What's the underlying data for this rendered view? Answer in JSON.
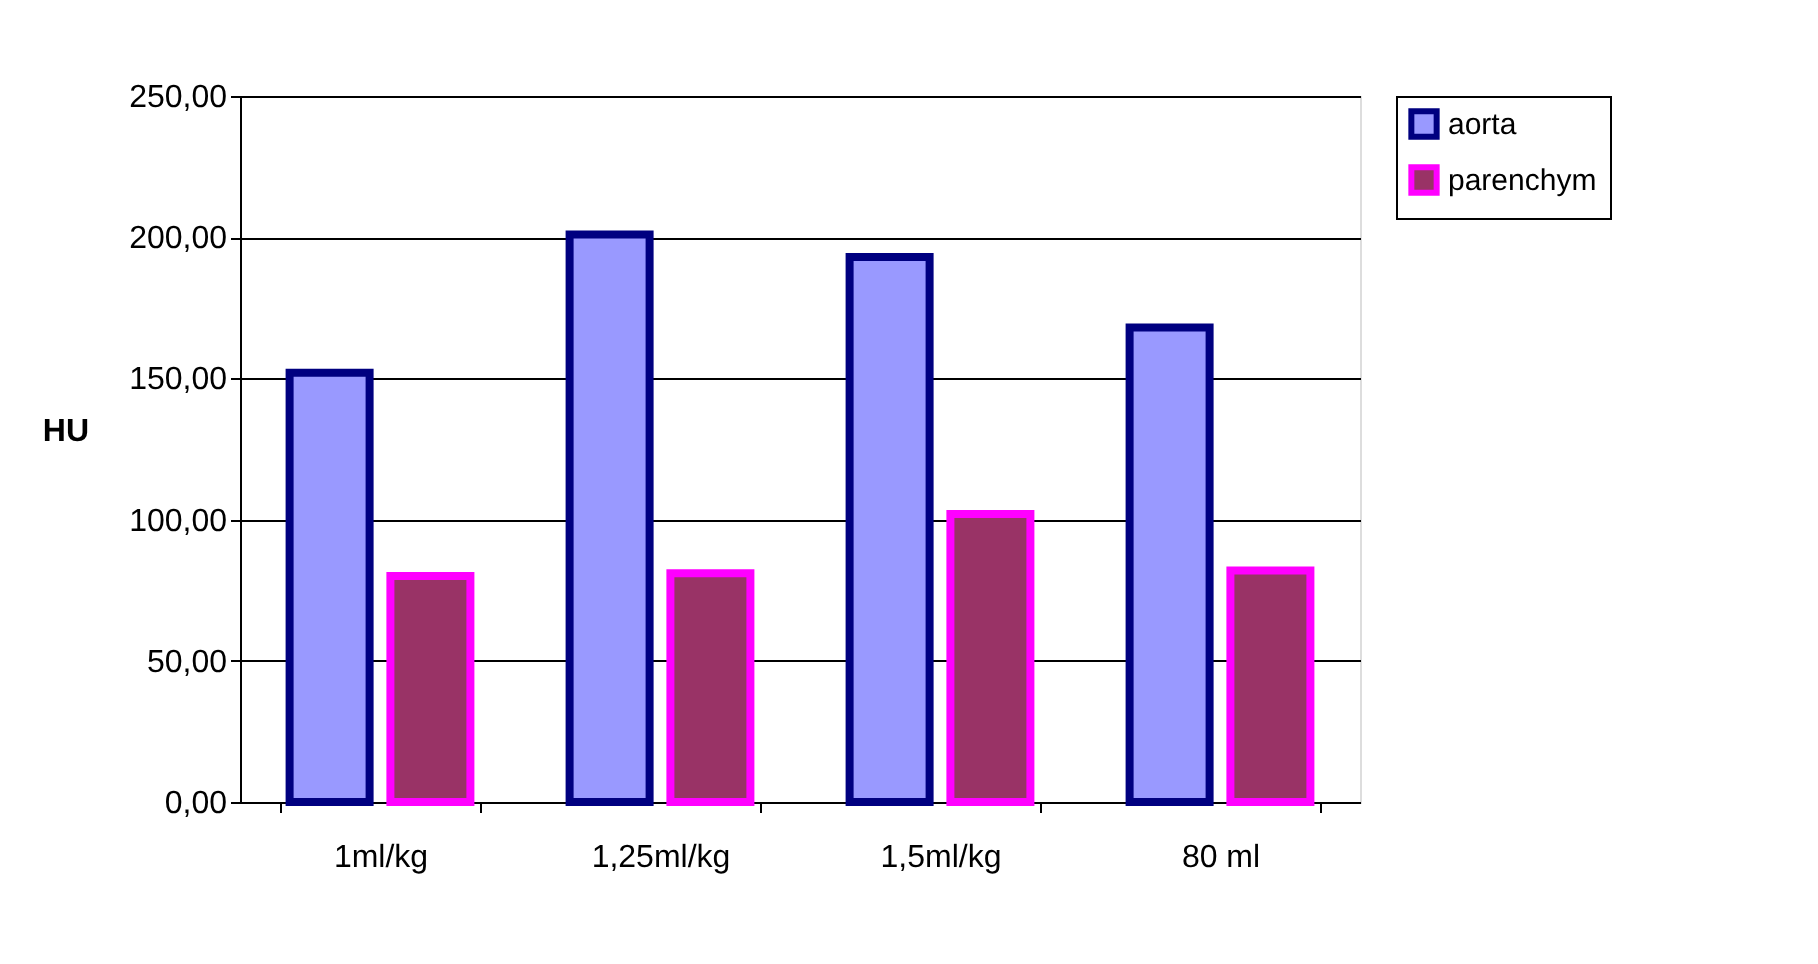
{
  "chart_data": {
    "type": "bar",
    "ylabel": "HU",
    "categories": [
      "1ml/kg",
      "1,25ml/kg",
      "1,5ml/kg",
      "80 ml"
    ],
    "series": [
      {
        "name": "aorta",
        "color": "#9999ff",
        "values": [
          152,
          201,
          193,
          168
        ]
      },
      {
        "name": "parenchym",
        "color": "#993366",
        "values": [
          80,
          81,
          102,
          82
        ]
      }
    ],
    "ylim": [
      0,
      250
    ],
    "yticks": [
      {
        "value": 0,
        "label": "0,00"
      },
      {
        "value": 50,
        "label": "50,00"
      },
      {
        "value": 100,
        "label": "100,00"
      },
      {
        "value": 150,
        "label": "150,00"
      },
      {
        "value": 200,
        "label": "200,00"
      },
      {
        "value": 250,
        "label": "250,00"
      }
    ],
    "grid": "y",
    "legend": "right"
  }
}
